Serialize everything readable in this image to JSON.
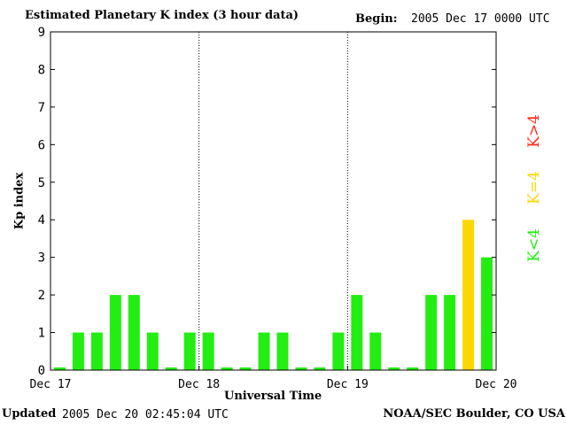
{
  "header": {
    "title": "Estimated Planetary K index (3 hour data)",
    "begin_label": "Begin:",
    "begin_value": "2005 Dec 17 0000 UTC"
  },
  "footer": {
    "updated_label": "Updated",
    "updated_value": "2005 Dec 20 02:45:04 UTC",
    "source": "NOAA/SEC Boulder, CO USA"
  },
  "legend": {
    "k_gt_4": {
      "label": "K>4",
      "color": "#ff2a1a"
    },
    "k_eq_4": {
      "label": "K=4",
      "color": "#ffd700"
    },
    "k_lt_4": {
      "label": "K<4",
      "color": "#22ee11"
    }
  },
  "chart_data": {
    "type": "bar",
    "title": "Estimated Planetary K index (3 hour data)",
    "xlabel": "Universal Time",
    "ylabel": "Kp index",
    "ylim": [
      0,
      9
    ],
    "yticks": [
      0,
      1,
      2,
      3,
      4,
      5,
      6,
      7,
      8,
      9
    ],
    "xtick_labels": [
      "Dec 17",
      "Dec 18",
      "Dec 19",
      "Dec 20"
    ],
    "day_separators": "dotted",
    "interval": "3 hour",
    "values": [
      0,
      1,
      1,
      2,
      2,
      1,
      0,
      1,
      1,
      0,
      0,
      1,
      1,
      0,
      0,
      1,
      2,
      1,
      0,
      0,
      2,
      2,
      4,
      3
    ]
  }
}
